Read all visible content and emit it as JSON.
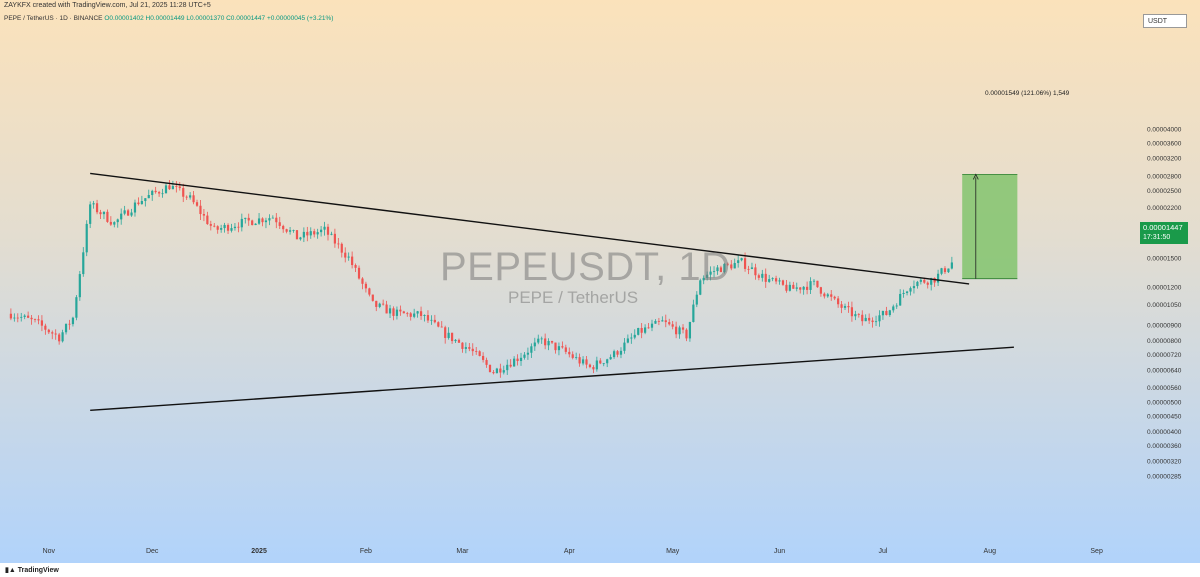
{
  "header": {
    "creator_line": "ZAYKFX created with TradingView.com, Jul 21, 2025 11:28 UTC+5",
    "symbol_line": "PEPE / TetherUS · 1D · BINANCE",
    "ohlc": "O0.00001402 H0.00001449 L0.00001370 C0.00001447 +0.00000045 (+3.21%)",
    "currency_badge": "USDT"
  },
  "watermark": {
    "title": "PEPEUSDT, 1D",
    "subtitle": "PEPE / TetherUS"
  },
  "measure": {
    "label": "0.00001549 (121.06%) 1,549"
  },
  "last_price": {
    "price": "0.00001447",
    "countdown": "17:31:50",
    "color": "#1a9a4a"
  },
  "footer": {
    "brand": "TradingView"
  },
  "colors": {
    "up": "#26a69a",
    "down": "#ef5350",
    "bg_top": "#fbe3bd",
    "bg_bottom": "#b3d4fa",
    "target_box": "#82c46d"
  },
  "chart_data": {
    "type": "candlestick",
    "symbol": "PEPEUSDT",
    "interval": "1D",
    "x_ticks": [
      "Nov",
      "Dec",
      "2025",
      "Feb",
      "Mar",
      "Apr",
      "May",
      "Jun",
      "Jul",
      "Aug",
      "Sep"
    ],
    "y_ticks": [
      "0.00004000",
      "0.00003600",
      "0.00003200",
      "0.00002800",
      "0.00002500",
      "0.00002200",
      "0.00001900",
      "0.00001700",
      "0.00001500",
      "0.00001200",
      "0.00001050",
      "0.00000900",
      "0.00000800",
      "0.00000720",
      "0.00000640",
      "0.00000560",
      "0.00000500",
      "0.00000450",
      "0.00000400",
      "0.00000360",
      "0.00000320",
      "0.00000285"
    ],
    "scale": "log",
    "ylim": [
      2.7e-06,
      4.5e-06
    ],
    "series": [
      {
        "time": "2024-10-21",
        "close": 9.8e-06
      },
      {
        "time": "2024-10-28",
        "close": 9.2e-06
      },
      {
        "time": "2024-11-04",
        "close": 8.2e-06
      },
      {
        "time": "2024-11-08",
        "close": 9.5e-06
      },
      {
        "time": "2024-11-13",
        "close": 2.25e-05
      },
      {
        "time": "2024-11-20",
        "close": 1.95e-05
      },
      {
        "time": "2024-11-27",
        "close": 2.3e-05
      },
      {
        "time": "2024-12-06",
        "close": 2.6e-05
      },
      {
        "time": "2024-12-12",
        "close": 2.35e-05
      },
      {
        "time": "2024-12-19",
        "close": 1.85e-05
      },
      {
        "time": "2024-12-26",
        "close": 1.95e-05
      },
      {
        "time": "2025-01-05",
        "close": 2.05e-05
      },
      {
        "time": "2025-01-12",
        "close": 1.75e-05
      },
      {
        "time": "2025-01-20",
        "close": 1.85e-05
      },
      {
        "time": "2025-01-27",
        "close": 1.5e-05
      },
      {
        "time": "2025-02-03",
        "close": 1.05e-05
      },
      {
        "time": "2025-02-10",
        "close": 9.8e-06
      },
      {
        "time": "2025-02-17",
        "close": 9.7e-06
      },
      {
        "time": "2025-02-24",
        "close": 8.4e-06
      },
      {
        "time": "2025-03-03",
        "close": 7.5e-06
      },
      {
        "time": "2025-03-10",
        "close": 6.3e-06
      },
      {
        "time": "2025-03-17",
        "close": 7e-06
      },
      {
        "time": "2025-03-24",
        "close": 8e-06
      },
      {
        "time": "2025-03-31",
        "close": 7.3e-06
      },
      {
        "time": "2025-04-07",
        "close": 6.5e-06
      },
      {
        "time": "2025-04-14",
        "close": 7.2e-06
      },
      {
        "time": "2025-04-21",
        "close": 8.5e-06
      },
      {
        "time": "2025-04-28",
        "close": 9.2e-06
      },
      {
        "time": "2025-05-05",
        "close": 8.3e-06
      },
      {
        "time": "2025-05-09",
        "close": 1.28e-05
      },
      {
        "time": "2025-05-14",
        "close": 1.38e-05
      },
      {
        "time": "2025-05-21",
        "close": 1.45e-05
      },
      {
        "time": "2025-05-28",
        "close": 1.28e-05
      },
      {
        "time": "2025-06-04",
        "close": 1.18e-05
      },
      {
        "time": "2025-06-11",
        "close": 1.23e-05
      },
      {
        "time": "2025-06-18",
        "close": 1.05e-05
      },
      {
        "time": "2025-06-25",
        "close": 9.3e-06
      },
      {
        "time": "2025-07-02",
        "close": 9.8e-06
      },
      {
        "time": "2025-07-09",
        "close": 1.23e-05
      },
      {
        "time": "2025-07-16",
        "close": 1.28e-05
      },
      {
        "time": "2025-07-21",
        "close": 1.447e-05
      }
    ],
    "trendlines": [
      {
        "name": "upper",
        "from": {
          "time": "2024-11-13",
          "price": 2.85e-05
        },
        "to": {
          "time": "2025-07-26",
          "price": 1.23e-05
        }
      },
      {
        "name": "lower",
        "from": {
          "time": "2024-11-13",
          "price": 4.7e-06
        },
        "to": {
          "time": "2025-08-08",
          "price": 7.6e-06
        }
      }
    ],
    "target_box": {
      "from_time": "2025-07-24",
      "to_time": "2025-08-09",
      "low": 1.28e-05,
      "high": 2.83e-05
    }
  }
}
